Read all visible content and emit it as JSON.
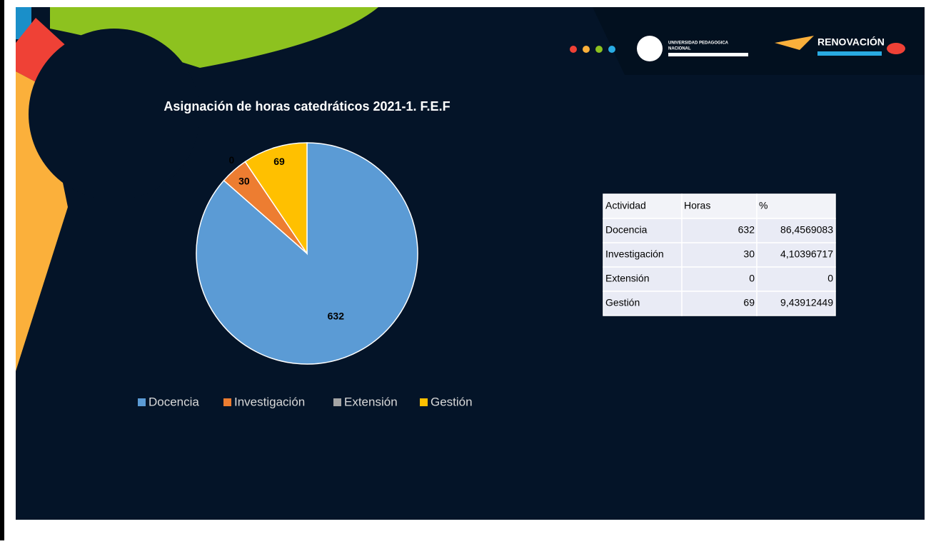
{
  "chart_data": {
    "type": "pie",
    "title": "Asignación de horas catedráticos 2021-1. F.E.F",
    "categories": [
      "Docencia",
      "Investigación",
      "Extensión",
      "Gestión"
    ],
    "values": [
      632,
      30,
      0,
      69
    ],
    "colors": [
      "#5b9bd5",
      "#ed7d31",
      "#a5a5a5",
      "#ffc000"
    ],
    "legend": "bottom"
  },
  "table": {
    "header": [
      "Actividad",
      "Horas",
      "%"
    ],
    "rows": [
      [
        "Docencia",
        "632",
        "86,4569083"
      ],
      [
        "Investigación",
        "30",
        "4,10396717"
      ],
      [
        "Extensión",
        "0",
        "0"
      ],
      [
        "Gestión",
        "69",
        "9,43912449"
      ]
    ]
  },
  "logos": {
    "university": "UNIVERSIDAD PEDAGOGICA",
    "university_sub": "NACIONAL",
    "campaign": "RENOVACIÓN"
  }
}
